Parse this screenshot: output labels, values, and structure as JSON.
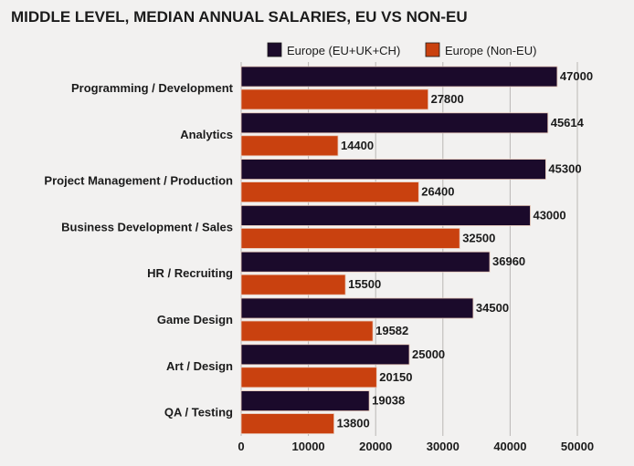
{
  "chart_data": {
    "type": "bar",
    "orientation": "horizontal",
    "title": "MIDDLE LEVEL, MEDIAN ANNUAL SALARIES, EU VS NON-EU",
    "xlabel": "",
    "ylabel": "",
    "categories": [
      "Programming / Development",
      "Analytics",
      "Project Management / Production",
      "Business Development / Sales",
      "HR / Recruiting",
      "Game Design",
      "Art / Design",
      "QA / Testing"
    ],
    "series": [
      {
        "name": "Europe (EU+UK+CH)",
        "color": "#1b0a2b",
        "values": [
          47000,
          45614,
          45300,
          43000,
          36960,
          34500,
          25000,
          19038
        ]
      },
      {
        "name": "Europe (Non-EU)",
        "color": "#c9410f",
        "values": [
          27800,
          14400,
          26400,
          32500,
          15500,
          19582,
          20150,
          13800
        ]
      }
    ],
    "xlim": [
      0,
      50000
    ],
    "xticks": [
      "0",
      "10000",
      "20000",
      "30000",
      "40000",
      "50000"
    ],
    "grid": true,
    "legend_position": "top-right"
  }
}
